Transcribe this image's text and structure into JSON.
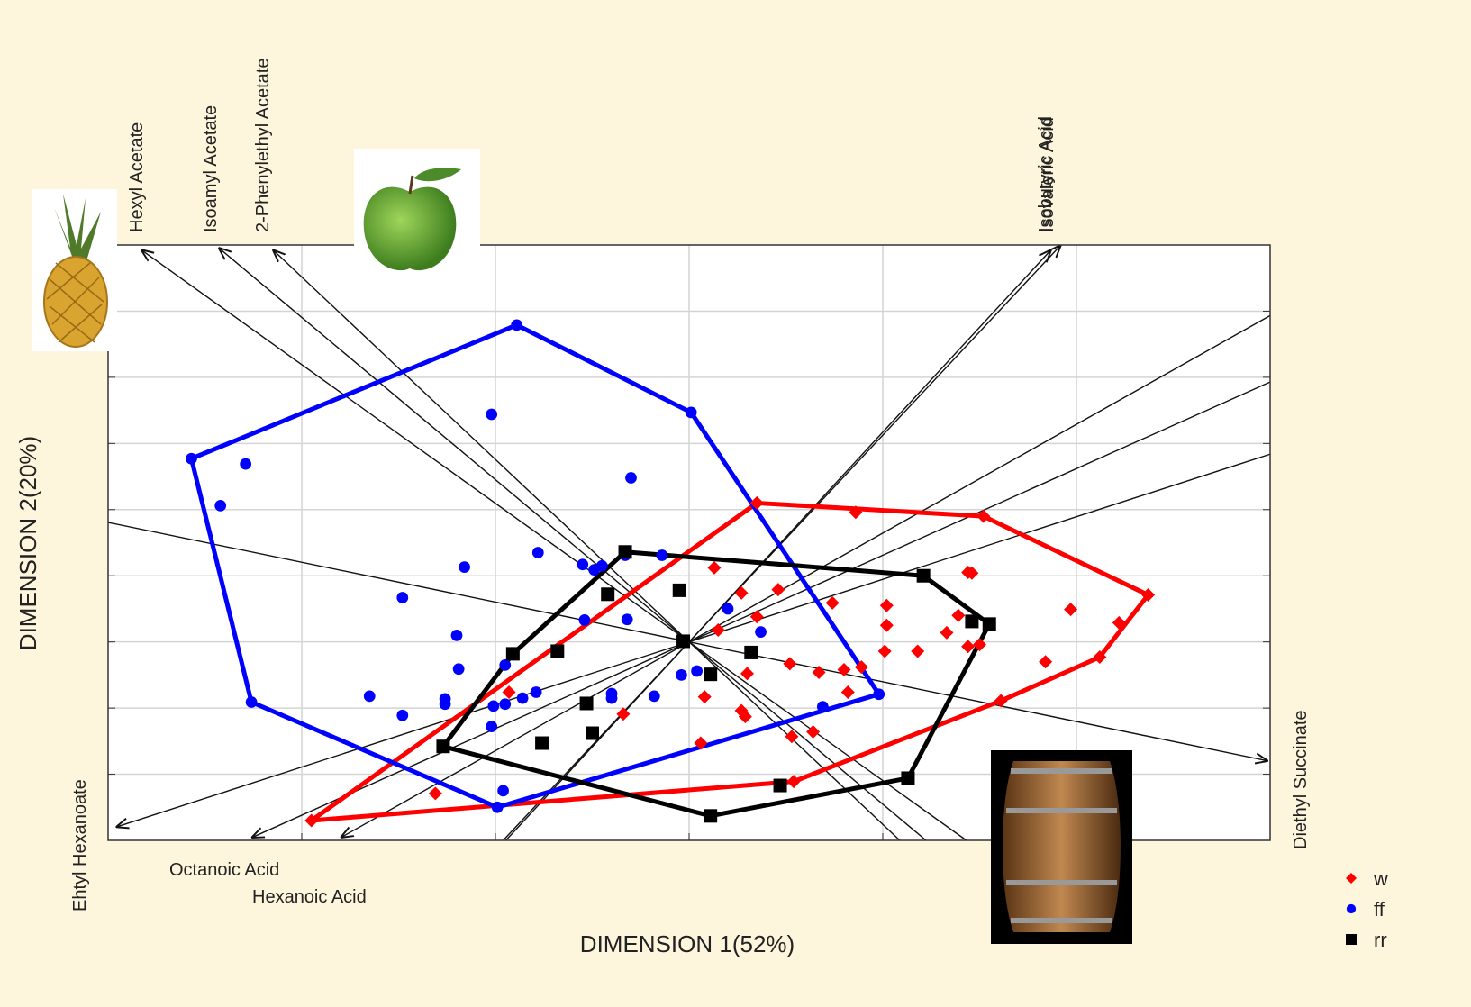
{
  "chart_data": {
    "type": "biplot",
    "x_label": "DIMENSION 1(52%)",
    "y_label": "DIMENSION 2(20%)",
    "xlim": [
      -3,
      3
    ],
    "ylim": [
      -3,
      6
    ],
    "xticks": [
      -2,
      -1,
      0,
      1,
      2
    ],
    "yticks": [
      -2,
      -1,
      0,
      1,
      2,
      3,
      4,
      5
    ],
    "grid": true,
    "series": [
      {
        "name": "w",
        "color": "#ff0000",
        "marker": "diamond",
        "x": [
          0.35,
          0.86,
          1.52,
          1.44,
          1.46,
          2.37,
          1.97,
          0.74,
          1.02,
          1.02,
          1.39,
          1.33,
          1.5,
          1.44,
          1.01,
          1.18,
          0.46,
          0.27,
          0.13,
          0.35,
          0.15,
          0.52,
          0.3,
          0.67,
          0.8,
          0.89,
          1.84,
          2.12,
          2.22,
          0.82,
          1.61,
          0.08,
          0.27,
          0.29,
          -0.34,
          -0.93,
          0.53,
          0.64,
          0.06,
          0.54,
          -1.31,
          -1.95
        ],
        "y": [
          2.1,
          1.96,
          1.9,
          1.05,
          1.04,
          0.71,
          0.49,
          0.59,
          0.55,
          0.25,
          0.4,
          0.14,
          -0.04,
          -0.07,
          -0.14,
          -0.14,
          0.79,
          0.74,
          1.12,
          0.38,
          0.18,
          -0.33,
          -0.48,
          -0.46,
          -0.42,
          -0.38,
          -0.3,
          -0.23,
          0.29,
          -0.76,
          -0.89,
          -0.83,
          -1.04,
          -1.13,
          -1.09,
          -0.76,
          -1.43,
          -1.36,
          -1.53,
          -2.11,
          -2.29,
          -2.7
        ]
      },
      {
        "name": "ff",
        "color": "#0000ff",
        "marker": "circle",
        "x": [
          -0.89,
          -1.02,
          0.01,
          -2.57,
          -2.29,
          -2.42,
          -0.3,
          -0.78,
          -1.16,
          -0.55,
          -0.49,
          -0.33,
          -0.14,
          -1.48,
          -0.54,
          -0.32,
          -1.2,
          -1.19,
          -0.95,
          0.2,
          0.37,
          0.04,
          -0.04,
          -0.18,
          -0.4,
          -0.4,
          -0.79,
          -0.86,
          -0.95,
          -1.01,
          -1.26,
          -1.26,
          -1.65,
          -1.48,
          -2.26,
          -1.02,
          -0.96,
          -0.99,
          0.98,
          0.69,
          -0.45
        ],
        "y": [
          4.79,
          3.44,
          3.47,
          2.77,
          2.69,
          2.06,
          2.48,
          1.35,
          1.13,
          1.17,
          1.09,
          1.31,
          1.31,
          0.67,
          0.33,
          0.34,
          0.1,
          -0.41,
          -0.35,
          0.5,
          0.15,
          -0.44,
          -0.5,
          -0.82,
          -0.78,
          -0.85,
          -0.76,
          -0.85,
          -0.94,
          -0.97,
          -0.86,
          -0.94,
          -0.82,
          -1.11,
          -0.91,
          -1.28,
          -2.25,
          -2.5,
          -0.79,
          -0.98,
          1.15
        ]
      },
      {
        "name": "rr",
        "color": "#000000",
        "marker": "square",
        "x": [
          -0.33,
          -0.05,
          -0.42,
          1.21,
          1.46,
          1.55,
          -0.03,
          0.32,
          -0.68,
          -0.91,
          0.11,
          -0.53,
          -0.5,
          -0.76,
          -1.27,
          0.47,
          1.13,
          0.11
        ],
        "y": [
          1.36,
          0.78,
          0.72,
          1.0,
          0.31,
          0.27,
          0.01,
          -0.16,
          -0.14,
          -0.18,
          -0.49,
          -0.93,
          -1.38,
          -1.53,
          -1.58,
          -2.17,
          -2.06,
          -2.63
        ]
      }
    ],
    "vectors": [
      {
        "label": "Hexyl Acetate",
        "x": -2.83,
        "y": 5.93
      },
      {
        "label": "Isoamyl Acetate",
        "x": -2.43,
        "y": 5.96
      },
      {
        "label": "2-Phenylethyl Acetate",
        "x": -2.15,
        "y": 5.93
      },
      {
        "label": "Isobutyric Acid",
        "x": 1.92,
        "y": 6.0
      },
      {
        "label": "Isovaleric Acid",
        "x": 1.87,
        "y": 5.93
      },
      {
        "label": "Diethyl Succinate",
        "x": 2.99,
        "y": -1.8
      },
      {
        "label": "Ehtyl Hexanoate",
        "x": -2.96,
        "y": -2.8
      },
      {
        "label": "Octanoic Acid",
        "x": -2.26,
        "y": -2.96
      },
      {
        "label": "Hexanoic Acid",
        "x": -1.8,
        "y": -2.96
      }
    ]
  }
}
